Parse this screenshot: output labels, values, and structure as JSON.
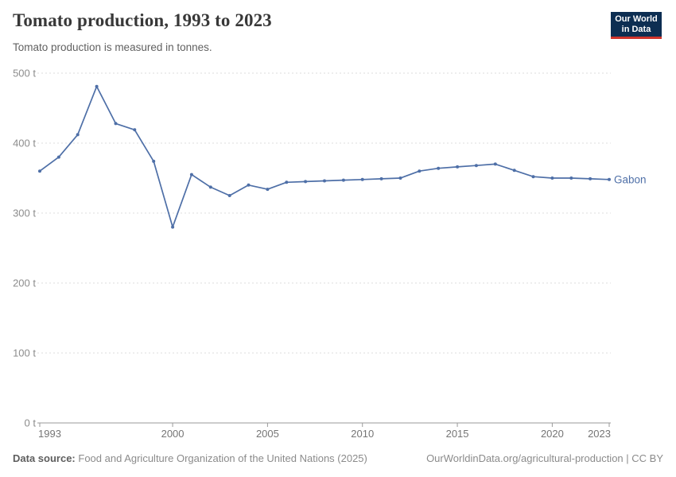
{
  "header": {
    "title": "Tomato production, 1993 to 2023",
    "subtitle": "Tomato production is measured in tonnes."
  },
  "logo": {
    "line1": "Our World",
    "line2": "in Data",
    "bg_color": "#0d2e52",
    "accent_color": "#d0342c"
  },
  "chart_data": {
    "type": "line",
    "title": "Tomato production, 1993 to 2023",
    "subtitle": "Tomato production is measured in tonnes.",
    "unit": "t",
    "x": [
      1993,
      1994,
      1995,
      1996,
      1997,
      1998,
      1999,
      2000,
      2001,
      2002,
      2003,
      2004,
      2005,
      2006,
      2007,
      2008,
      2009,
      2010,
      2011,
      2012,
      2013,
      2014,
      2015,
      2016,
      2017,
      2018,
      2019,
      2020,
      2021,
      2022,
      2023
    ],
    "series": [
      {
        "name": "Gabon",
        "color": "#4e6fa7",
        "values": [
          360,
          380,
          412,
          481,
          428,
          419,
          374,
          280,
          355,
          337,
          325,
          340,
          334,
          344,
          345,
          346,
          347,
          348,
          349,
          350,
          360,
          364,
          366,
          368,
          370,
          361,
          352,
          350,
          350,
          349,
          348
        ]
      }
    ],
    "x_ticks": [
      1993,
      2000,
      2005,
      2010,
      2015,
      2020,
      2023
    ],
    "y_ticks": [
      0,
      100,
      200,
      300,
      400,
      500
    ],
    "y_tick_format": "{v} t",
    "ylim": [
      0,
      500
    ],
    "xlim": [
      1993,
      2023
    ],
    "grid": "dashed-horizontal",
    "legend": "end-of-line-label",
    "colors": {
      "gridline": "#dcdcdc",
      "axis": "#9a9a9a",
      "y_tick_label": "#8c8c8c",
      "x_tick_label": "#757575"
    }
  },
  "footer": {
    "source_label": "Data source:",
    "source_text": "Food and Agriculture Organization of the United Nations (2025)",
    "right_text": "OurWorldinData.org/agricultural-production | CC BY"
  }
}
